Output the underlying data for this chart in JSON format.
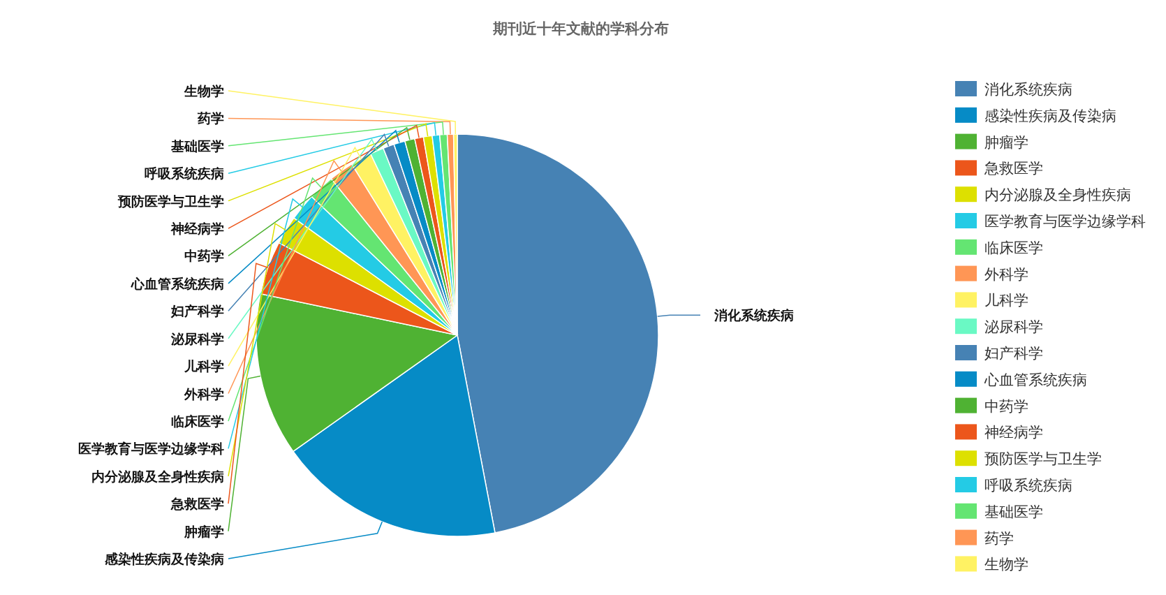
{
  "chart_data": {
    "type": "pie",
    "title": "期刊近十年文献的学科分布",
    "categories": [
      "消化系统疾病",
      "感染性疾病及传染病",
      "肿瘤学",
      "急救医学",
      "内分泌腺及全身性疾病",
      "医学教育与医学边缘学科",
      "临床医学",
      "外科学",
      "儿科学",
      "泌尿科学",
      "妇产科学",
      "心血管系统疾病",
      "中药学",
      "神经病学",
      "预防医学与卫生学",
      "呼吸系统疾病",
      "基础医学",
      "药学",
      "生物学"
    ],
    "values": [
      47.0,
      18.2,
      13.1,
      4.3,
      2.3,
      2.2,
      2.1,
      2.0,
      1.7,
      1.1,
      0.9,
      0.9,
      0.8,
      0.7,
      0.7,
      0.6,
      0.6,
      0.5,
      0.3
    ],
    "colors": [
      "#4682b4",
      "#068bc6",
      "#4fb233",
      "#ec561b",
      "#dde000",
      "#24cbe5",
      "#64e572",
      "#ff9655",
      "#fff263",
      "#6af9c4",
      "#4682b4",
      "#068bc6",
      "#4fb233",
      "#ec561b",
      "#dde000",
      "#24cbe5",
      "#64e572",
      "#ff9655",
      "#fff263"
    ],
    "legend": "right"
  }
}
